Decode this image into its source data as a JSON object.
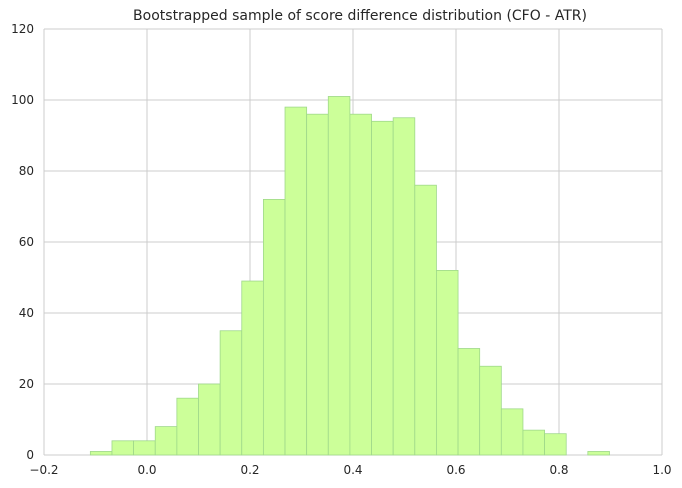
{
  "chart_data": {
    "type": "bar",
    "title": "Bootstrapped sample of score difference distribution (CFO - ATR)",
    "xlabel": "",
    "ylabel": "",
    "xlim": [
      -0.2,
      1.0
    ],
    "ylim": [
      0,
      120
    ],
    "x_ticks": [
      -0.2,
      0.0,
      0.2,
      0.4,
      0.6,
      0.8,
      1.0
    ],
    "x_tick_labels": [
      "−0.2",
      "0.0",
      "0.2",
      "0.4",
      "0.6",
      "0.8",
      "1.0"
    ],
    "y_ticks": [
      0,
      20,
      40,
      60,
      80,
      100,
      120
    ],
    "y_tick_labels": [
      "0",
      "20",
      "40",
      "60",
      "80",
      "100",
      "120"
    ],
    "grid": true,
    "bar_color": "#ccff99",
    "bins": [
      {
        "x0": -0.11,
        "x1": -0.068,
        "count": 1
      },
      {
        "x0": -0.068,
        "x1": -0.026,
        "count": 4
      },
      {
        "x0": -0.026,
        "x1": 0.016,
        "count": 4
      },
      {
        "x0": 0.016,
        "x1": 0.058,
        "count": 8
      },
      {
        "x0": 0.058,
        "x1": 0.1,
        "count": 16
      },
      {
        "x0": 0.1,
        "x1": 0.142,
        "count": 20
      },
      {
        "x0": 0.142,
        "x1": 0.184,
        "count": 35
      },
      {
        "x0": 0.184,
        "x1": 0.226,
        "count": 49
      },
      {
        "x0": 0.226,
        "x1": 0.268,
        "count": 72
      },
      {
        "x0": 0.268,
        "x1": 0.31,
        "count": 98
      },
      {
        "x0": 0.31,
        "x1": 0.352,
        "count": 96
      },
      {
        "x0": 0.352,
        "x1": 0.394,
        "count": 101
      },
      {
        "x0": 0.394,
        "x1": 0.436,
        "count": 96
      },
      {
        "x0": 0.436,
        "x1": 0.478,
        "count": 94
      },
      {
        "x0": 0.478,
        "x1": 0.52,
        "count": 95
      },
      {
        "x0": 0.52,
        "x1": 0.562,
        "count": 76
      },
      {
        "x0": 0.562,
        "x1": 0.604,
        "count": 52
      },
      {
        "x0": 0.604,
        "x1": 0.646,
        "count": 30
      },
      {
        "x0": 0.646,
        "x1": 0.688,
        "count": 25
      },
      {
        "x0": 0.688,
        "x1": 0.73,
        "count": 13
      },
      {
        "x0": 0.73,
        "x1": 0.772,
        "count": 7
      },
      {
        "x0": 0.772,
        "x1": 0.814,
        "count": 6
      },
      {
        "x0": 0.814,
        "x1": 0.856,
        "count": 0
      },
      {
        "x0": 0.856,
        "x1": 0.898,
        "count": 1
      }
    ]
  }
}
